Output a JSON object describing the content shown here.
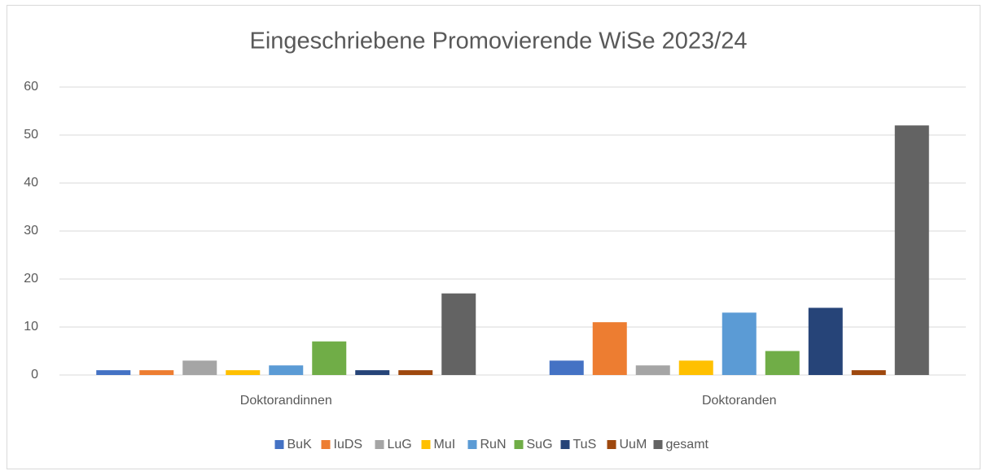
{
  "chart_data": {
    "type": "bar",
    "title": "Eingeschriebene Promovierende WiSe 2023/24",
    "categories": [
      "Doktorandinnen",
      "Doktoranden"
    ],
    "series": [
      {
        "name": "BuK",
        "color": "#4472c4",
        "values": [
          1,
          3
        ]
      },
      {
        "name": "IuDS",
        "color": "#ed7d31",
        "values": [
          1,
          11
        ]
      },
      {
        "name": "LuG",
        "color": "#a5a5a5",
        "values": [
          3,
          2
        ]
      },
      {
        "name": "MuI",
        "color": "#ffc000",
        "values": [
          1,
          3
        ]
      },
      {
        "name": "RuN",
        "color": "#5b9bd5",
        "values": [
          2,
          13
        ]
      },
      {
        "name": "SuG",
        "color": "#70ad47",
        "values": [
          7,
          5
        ]
      },
      {
        "name": "TuS",
        "color": "#264478",
        "values": [
          1,
          14
        ]
      },
      {
        "name": "UuM",
        "color": "#9e480e",
        "values": [
          1,
          1
        ]
      },
      {
        "name": "gesamt",
        "color": "#636363",
        "values": [
          17,
          52
        ]
      }
    ],
    "ylim": [
      0,
      60
    ],
    "yticks": [
      0,
      10,
      20,
      30,
      40,
      50,
      60
    ],
    "grid": true,
    "legend": "bottom"
  }
}
